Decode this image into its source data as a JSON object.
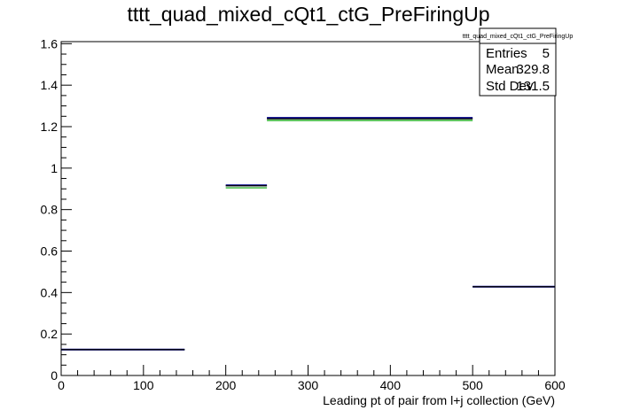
{
  "chart_data": {
    "type": "histogram",
    "title": "tttt_quad_mixed_cQt1_ctG_PreFiringUp",
    "xlabel": "Leading pt of pair from l+j collection (GeV)",
    "ylabel": "",
    "xlim": [
      0,
      600
    ],
    "ylim": [
      0,
      1.61
    ],
    "x_ticks": [
      0,
      100,
      200,
      300,
      400,
      500,
      600
    ],
    "y_ticks": [
      0,
      0.2,
      0.4,
      0.6,
      0.8,
      1,
      1.2,
      1.4,
      1.6
    ],
    "bin_edges": [
      0,
      150,
      200,
      250,
      500,
      600
    ],
    "series": [
      {
        "color": "#000000",
        "values": [
          0.125,
          0.0,
          0.915,
          1.238,
          0.428
        ]
      },
      {
        "color": "#00008b",
        "values": [
          0.125,
          0.0,
          0.917,
          1.242,
          0.428
        ]
      },
      {
        "color": "#00a000",
        "values": [
          0.125,
          0.0,
          0.905,
          1.23,
          0.428
        ]
      }
    ],
    "stats_box": {
      "name": "tttt_quad_mixed_cQt1_ctG_PreFiringUp",
      "rows": [
        {
          "label": "Entries",
          "value": "5"
        },
        {
          "label": "Mean",
          "value": "329.8"
        },
        {
          "label": "Std Dev",
          "value": "131.5"
        }
      ]
    },
    "grid": false,
    "legend": "top-right"
  }
}
